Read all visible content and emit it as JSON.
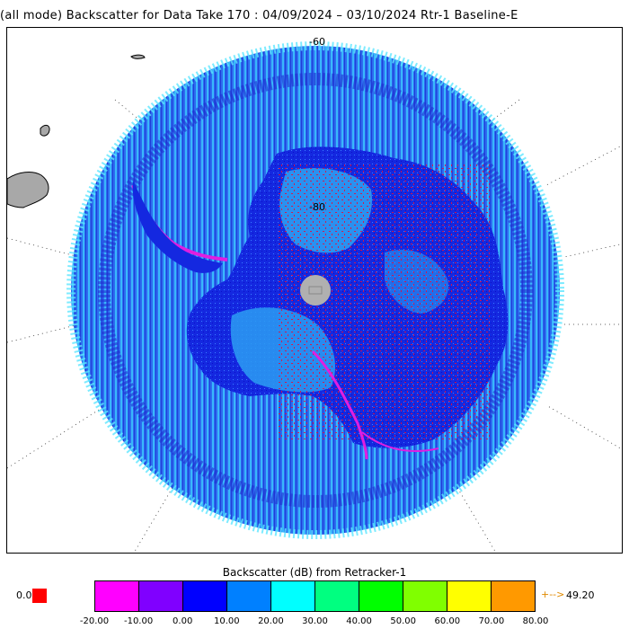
{
  "title": "(all mode) Backscatter for Data Take 170 : 04/09/2024 – 03/10/2024 Rtr-1 Baseline-E",
  "map": {
    "lat_labels": [
      "-60",
      "-80"
    ]
  },
  "legend": {
    "title": "Backscatter (dB) from Retracker-1",
    "under_value": "0.0",
    "over_arrow": "+-->",
    "over_value": "49.20",
    "ticks": [
      "-20.00",
      "-10.00",
      "0.00",
      "10.00",
      "20.00",
      "30.00",
      "40.00",
      "50.00",
      "60.00",
      "70.00",
      "80.00"
    ],
    "colors": [
      "#ff00ff",
      "#8000ff",
      "#0000ff",
      "#0080ff",
      "#00ffff",
      "#00ff80",
      "#00ff00",
      "#80ff00",
      "#ffff00",
      "#ff9900"
    ]
  }
}
